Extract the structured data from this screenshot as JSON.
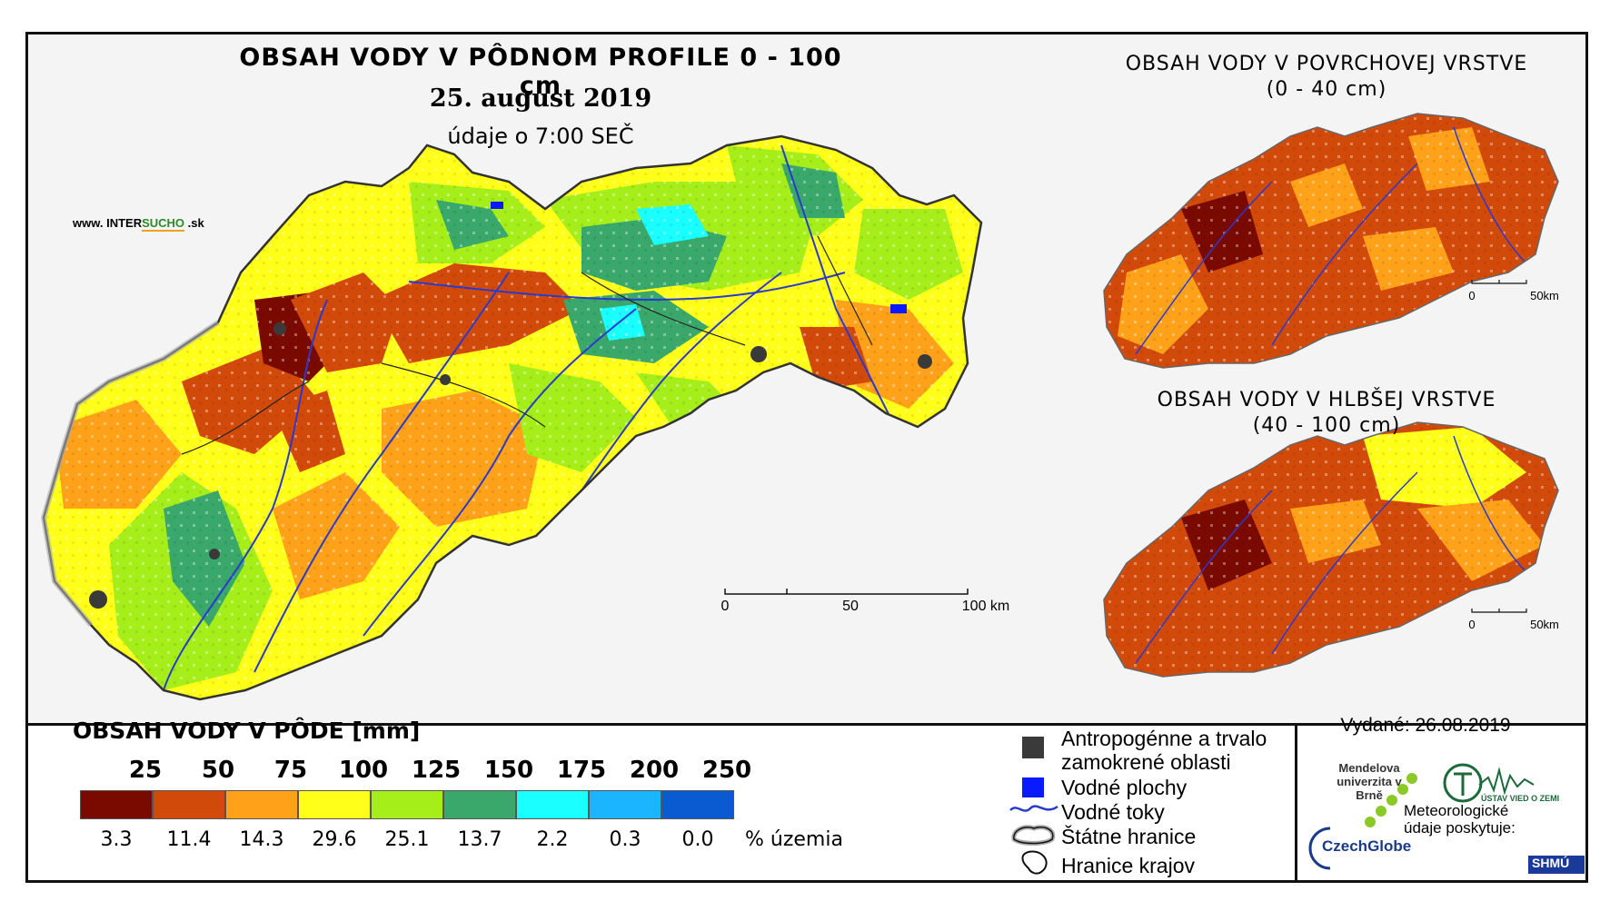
{
  "main_map": {
    "title": "OBSAH VODY V PÔDNOM PROFILE 0 - 100 cm",
    "date": "25. august 2019",
    "time": "údaje o 7:00 SEČ",
    "scale": {
      "labels": [
        "0",
        "50",
        "100 km"
      ]
    }
  },
  "logo": {
    "prefix": "www. INTER",
    "highlight": "SUCHO",
    "suffix": " .sk"
  },
  "surface_map": {
    "title_line1": "OBSAH VODY V POVRCHOVEJ VRSTVE",
    "title_line2": "(0 - 40 cm)",
    "scale": {
      "labels": [
        "0",
        "50km"
      ]
    }
  },
  "deep_map": {
    "title_line1": "OBSAH VODY V HLBŠEJ VRSTVE",
    "title_line2": "(40 - 100 cm)",
    "scale": {
      "labels": [
        "0",
        "50km"
      ]
    }
  },
  "legend": {
    "title": "OBSAH VODY V PÔDE [mm]",
    "thresholds": [
      "25",
      "50",
      "75",
      "100",
      "125",
      "150",
      "175",
      "200",
      "250"
    ],
    "classes": [
      {
        "color": "#7a0a00",
        "percent": "3.3"
      },
      {
        "color": "#d24a0a",
        "percent": "11.4"
      },
      {
        "color": "#ffa21a",
        "percent": "14.3"
      },
      {
        "color": "#ffff1a",
        "percent": "29.6"
      },
      {
        "color": "#a6ee1a",
        "percent": "25.1"
      },
      {
        "color": "#3aa86a",
        "percent": "13.7"
      },
      {
        "color": "#1affff",
        "percent": "2.2"
      },
      {
        "color": "#1ab4ff",
        "percent": "0.3"
      },
      {
        "color": "#0a5ad2",
        "percent": "0.0"
      }
    ],
    "percent_unit": "% územia"
  },
  "symbols": {
    "anthropogenic_line1": "Antropogénne a trvalo",
    "anthropogenic_line2": "zamokrené oblasti",
    "water_bodies": "Vodné plochy",
    "rivers": "Vodné toky",
    "state_border": "Štátne hranice",
    "region_border": "Hranice krajov"
  },
  "issued": "Vydané: 26.08.2019",
  "institutions": {
    "mendel": "Mendelova univerzita v Brně",
    "czechglobe": "CzechGlobe",
    "uvz": "ÚSTAV VIED O ZEMI",
    "meteo": "Meteorologické údaje poskytuje:",
    "shmu": "SHMÚ"
  },
  "colors": {
    "dark_red": "#7a0a00",
    "red_orange": "#d24a0a",
    "orange": "#ffa21a",
    "yellow": "#ffff1a",
    "light_green": "#a6ee1a",
    "green": "#3aa86a",
    "cyan": "#1affff",
    "light_blue": "#1ab4ff",
    "blue": "#0a5ad2",
    "anthropogenic": "#3a3a3a",
    "water": "#0a1aff",
    "river": "#2a3acc"
  }
}
